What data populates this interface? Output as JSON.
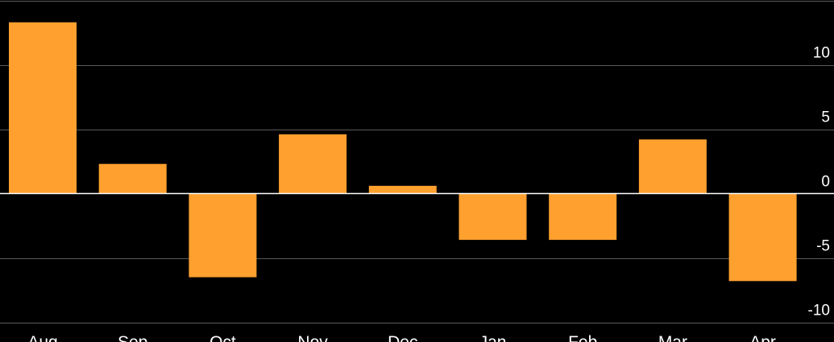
{
  "chart_data": {
    "type": "bar",
    "title": "",
    "xlabel": "",
    "ylabel": "",
    "categories": [
      "Aug",
      "Sep",
      "Oct",
      "Nov",
      "Dec",
      "Jan",
      "Feb",
      "Mar",
      "Apr"
    ],
    "values": [
      13.3,
      2.3,
      -6.5,
      4.6,
      0.6,
      -3.6,
      -3.6,
      4.2,
      -6.8
    ],
    "ylim": [
      -10,
      15
    ],
    "yticks": [
      10,
      5,
      0,
      -5,
      -10
    ],
    "grid": true,
    "colors": {
      "background": "#000000",
      "bar": "#FFA02F",
      "grid": "#5a5a5a",
      "zero_line": "#ffffff",
      "text": "#ffffff"
    }
  }
}
